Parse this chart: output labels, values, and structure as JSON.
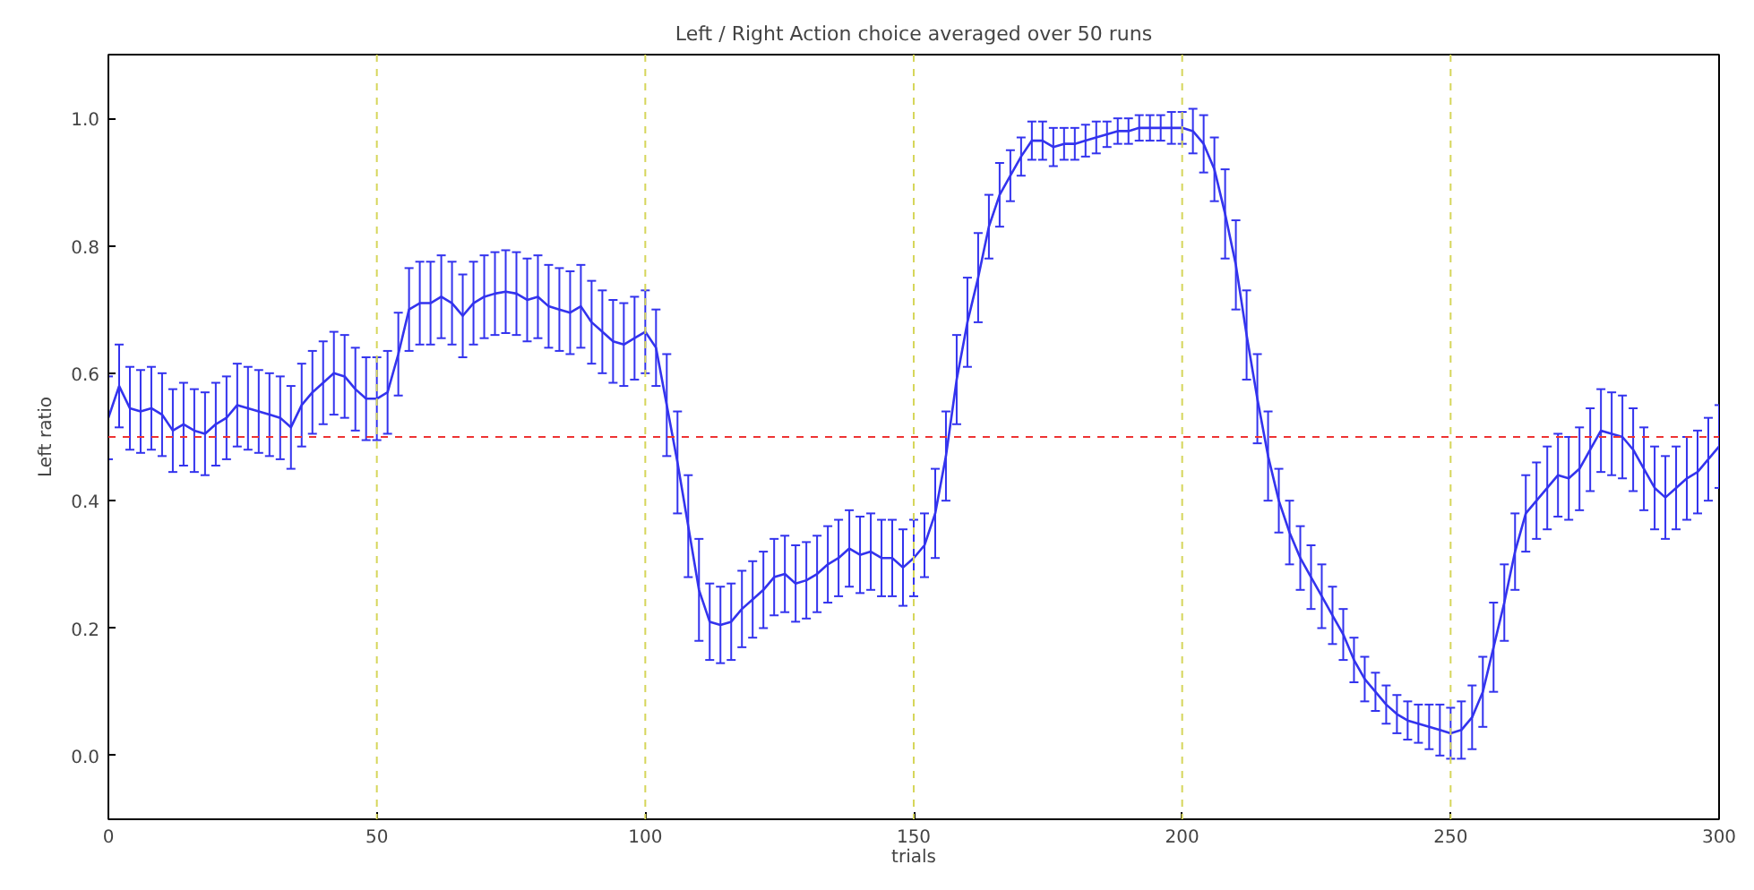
{
  "chart_data": {
    "type": "line",
    "title": "Left / Right Action choice averaged over 50 runs",
    "xlabel": "trials",
    "ylabel": "Left ratio",
    "x": [
      0,
      2,
      4,
      6,
      8,
      10,
      12,
      14,
      16,
      18,
      20,
      22,
      24,
      26,
      28,
      30,
      32,
      34,
      36,
      38,
      40,
      42,
      44,
      46,
      48,
      50,
      52,
      54,
      56,
      58,
      60,
      62,
      64,
      66,
      68,
      70,
      72,
      74,
      76,
      78,
      80,
      82,
      84,
      86,
      88,
      90,
      92,
      94,
      96,
      98,
      100,
      102,
      104,
      106,
      108,
      110,
      112,
      114,
      116,
      118,
      120,
      122,
      124,
      126,
      128,
      130,
      132,
      134,
      136,
      138,
      140,
      142,
      144,
      146,
      148,
      150,
      152,
      154,
      156,
      158,
      160,
      162,
      164,
      166,
      168,
      170,
      172,
      174,
      176,
      178,
      180,
      182,
      184,
      186,
      188,
      190,
      192,
      194,
      196,
      198,
      200,
      202,
      204,
      206,
      208,
      210,
      212,
      214,
      216,
      218,
      220,
      222,
      224,
      226,
      228,
      230,
      232,
      234,
      236,
      238,
      240,
      242,
      244,
      246,
      248,
      250,
      252,
      254,
      256,
      258,
      260,
      262,
      264,
      266,
      268,
      270,
      272,
      274,
      276,
      278,
      280,
      282,
      284,
      286,
      288,
      290,
      292,
      294,
      296,
      298,
      300
    ],
    "series": [
      {
        "color": "#3333ee",
        "values": [
          0.53,
          0.58,
          0.545,
          0.54,
          0.545,
          0.535,
          0.51,
          0.52,
          0.51,
          0.505,
          0.52,
          0.53,
          0.55,
          0.545,
          0.54,
          0.535,
          0.53,
          0.515,
          0.55,
          0.57,
          0.585,
          0.6,
          0.595,
          0.575,
          0.56,
          0.56,
          0.57,
          0.63,
          0.7,
          0.71,
          0.71,
          0.72,
          0.71,
          0.69,
          0.71,
          0.72,
          0.725,
          0.728,
          0.725,
          0.715,
          0.72,
          0.705,
          0.7,
          0.695,
          0.705,
          0.68,
          0.665,
          0.65,
          0.645,
          0.655,
          0.665,
          0.64,
          0.55,
          0.46,
          0.36,
          0.26,
          0.21,
          0.205,
          0.21,
          0.23,
          0.245,
          0.26,
          0.28,
          0.285,
          0.27,
          0.275,
          0.285,
          0.3,
          0.31,
          0.325,
          0.315,
          0.32,
          0.31,
          0.31,
          0.295,
          0.31,
          0.33,
          0.38,
          0.47,
          0.59,
          0.68,
          0.75,
          0.83,
          0.88,
          0.91,
          0.94,
          0.965,
          0.965,
          0.955,
          0.96,
          0.96,
          0.965,
          0.97,
          0.975,
          0.98,
          0.98,
          0.985,
          0.985,
          0.985,
          0.985,
          0.985,
          0.98,
          0.96,
          0.92,
          0.85,
          0.77,
          0.66,
          0.56,
          0.47,
          0.4,
          0.35,
          0.31,
          0.28,
          0.25,
          0.22,
          0.19,
          0.15,
          0.12,
          0.1,
          0.08,
          0.065,
          0.055,
          0.05,
          0.045,
          0.04,
          0.035,
          0.04,
          0.06,
          0.1,
          0.17,
          0.24,
          0.32,
          0.38,
          0.4,
          0.42,
          0.44,
          0.435,
          0.45,
          0.48,
          0.51,
          0.505,
          0.5,
          0.48,
          0.45,
          0.42,
          0.405,
          0.42,
          0.435,
          0.445,
          0.465,
          0.485
        ],
        "errors": [
          0.065,
          0.065,
          0.065,
          0.065,
          0.065,
          0.065,
          0.065,
          0.065,
          0.065,
          0.065,
          0.065,
          0.065,
          0.065,
          0.065,
          0.065,
          0.065,
          0.065,
          0.065,
          0.065,
          0.065,
          0.065,
          0.065,
          0.065,
          0.065,
          0.065,
          0.065,
          0.065,
          0.065,
          0.065,
          0.065,
          0.065,
          0.065,
          0.065,
          0.065,
          0.065,
          0.065,
          0.065,
          0.065,
          0.065,
          0.065,
          0.065,
          0.065,
          0.065,
          0.065,
          0.065,
          0.065,
          0.065,
          0.065,
          0.065,
          0.065,
          0.065,
          0.06,
          0.08,
          0.08,
          0.08,
          0.08,
          0.06,
          0.06,
          0.06,
          0.06,
          0.06,
          0.06,
          0.06,
          0.06,
          0.06,
          0.06,
          0.06,
          0.06,
          0.06,
          0.06,
          0.06,
          0.06,
          0.06,
          0.06,
          0.06,
          0.06,
          0.05,
          0.07,
          0.07,
          0.07,
          0.07,
          0.07,
          0.05,
          0.05,
          0.04,
          0.03,
          0.03,
          0.03,
          0.03,
          0.025,
          0.025,
          0.025,
          0.025,
          0.02,
          0.02,
          0.02,
          0.02,
          0.02,
          0.02,
          0.025,
          0.025,
          0.035,
          0.045,
          0.05,
          0.07,
          0.07,
          0.07,
          0.07,
          0.07,
          0.05,
          0.05,
          0.05,
          0.05,
          0.05,
          0.045,
          0.04,
          0.035,
          0.035,
          0.03,
          0.03,
          0.03,
          0.03,
          0.03,
          0.035,
          0.04,
          0.04,
          0.045,
          0.05,
          0.055,
          0.07,
          0.06,
          0.06,
          0.06,
          0.06,
          0.065,
          0.065,
          0.065,
          0.065,
          0.065,
          0.065,
          0.065,
          0.065,
          0.065,
          0.065,
          0.065,
          0.065,
          0.065,
          0.065,
          0.065,
          0.065,
          0.065
        ]
      }
    ],
    "xlim": [
      0,
      300
    ],
    "ylim": [
      -0.1,
      1.1
    ],
    "xticks": [
      0,
      50,
      100,
      150,
      200,
      250,
      300
    ],
    "yticks": [
      {
        "value": 0,
        "label": "0.0"
      },
      {
        "value": 0.2,
        "label": "0.2"
      },
      {
        "value": 0.4,
        "label": "0.4"
      },
      {
        "value": 0.6,
        "label": "0.6"
      },
      {
        "value": 0.8,
        "label": "0.8"
      },
      {
        "value": 1,
        "label": "1.0"
      }
    ],
    "ref_lines": [
      {
        "axis": "y",
        "value": 0.5,
        "color": "#ee3333",
        "line_style": "dashed"
      },
      {
        "axis": "x",
        "value": 50,
        "color": "#d6d65a",
        "line_style": "dashed"
      },
      {
        "axis": "x",
        "value": 100,
        "color": "#d6d65a",
        "line_style": "dashed"
      },
      {
        "axis": "x",
        "value": 150,
        "color": "#d6d65a",
        "line_style": "dashed"
      },
      {
        "axis": "x",
        "value": 200,
        "color": "#d6d65a",
        "line_style": "dashed"
      },
      {
        "axis": "x",
        "value": 250,
        "color": "#d6d65a",
        "line_style": "dashed"
      }
    ],
    "grid": false
  }
}
